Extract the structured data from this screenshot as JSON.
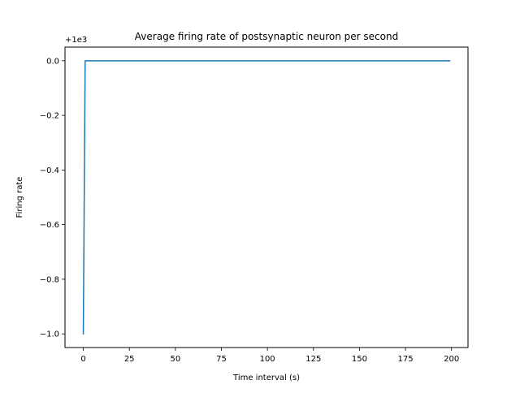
{
  "chart_data": {
    "type": "line",
    "title": "Average firing rate of postsynaptic neuron per second",
    "xlabel": "Time interval (s)",
    "ylabel": "Firing rate",
    "offset_label": "+1e3",
    "xlim": [
      -9.95,
      208.95
    ],
    "ylim": [
      -1.05,
      0.05
    ],
    "x_ticks": [
      0,
      25,
      50,
      75,
      100,
      125,
      150,
      175,
      200
    ],
    "x_tick_labels": [
      "0",
      "25",
      "50",
      "75",
      "100",
      "125",
      "150",
      "175",
      "200"
    ],
    "y_ticks": [
      0.0,
      -0.2,
      -0.4,
      -0.6,
      -0.8,
      -1.0
    ],
    "y_tick_labels": [
      "0.0",
      "−0.2",
      "−0.4",
      "−0.6",
      "−0.8",
      "−1.0"
    ],
    "grid": false,
    "series": [
      {
        "color": "#1f77b4",
        "x": [
          0,
          1,
          199
        ],
        "y": [
          -1.0,
          0.0,
          0.0
        ]
      }
    ]
  }
}
